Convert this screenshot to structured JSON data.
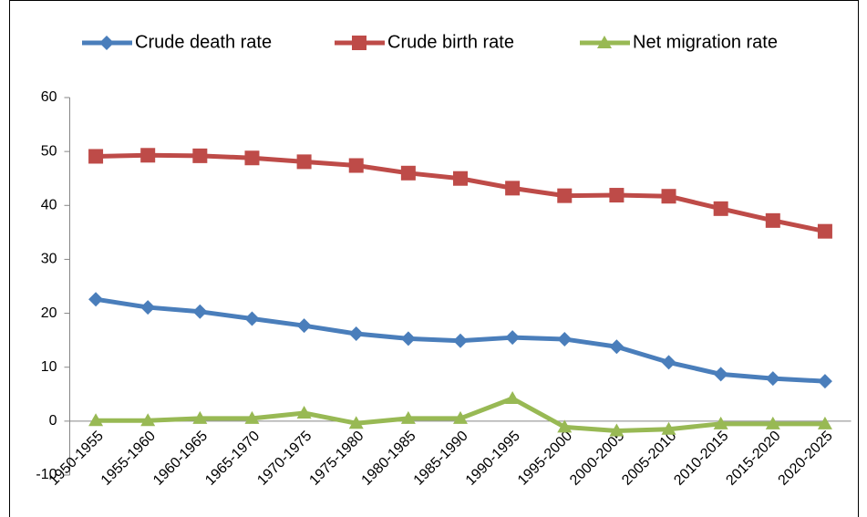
{
  "chart_data": {
    "type": "line",
    "categories": [
      "1950-1955",
      "1955-1960",
      "1960-1965",
      "1965-1970",
      "1970-1975",
      "1975-1980",
      "1980-1985",
      "1985-1990",
      "1990-1995",
      "1995-2000",
      "2000-2005",
      "2005-2010",
      "2010-2015",
      "2015-2020",
      "2020-2025"
    ],
    "series": [
      {
        "name": "Crude death rate",
        "color": "#4a7ebb",
        "marker": "diamond",
        "values": [
          22.6,
          21.1,
          20.3,
          19.0,
          17.7,
          16.2,
          15.3,
          14.9,
          15.5,
          15.2,
          13.8,
          10.9,
          8.7,
          7.9,
          7.4
        ]
      },
      {
        "name": "Crude birth rate",
        "color": "#be4b48",
        "marker": "square",
        "values": [
          49.1,
          49.3,
          49.2,
          48.8,
          48.1,
          47.4,
          46.0,
          45.0,
          43.2,
          41.8,
          41.9,
          41.7,
          39.4,
          37.2,
          35.2
        ]
      },
      {
        "name": "Net migration rate",
        "color": "#98b954",
        "marker": "triangle",
        "values": [
          0.1,
          0.1,
          0.5,
          0.5,
          1.5,
          -0.4,
          0.5,
          0.5,
          4.2,
          -1.1,
          -1.8,
          -1.5,
          -0.5,
          -0.5,
          -0.5
        ]
      }
    ],
    "ylim": [
      -10,
      60
    ],
    "yticks": [
      -10,
      0,
      10,
      20,
      30,
      40,
      50,
      60
    ],
    "grid": false,
    "legend": "top"
  }
}
